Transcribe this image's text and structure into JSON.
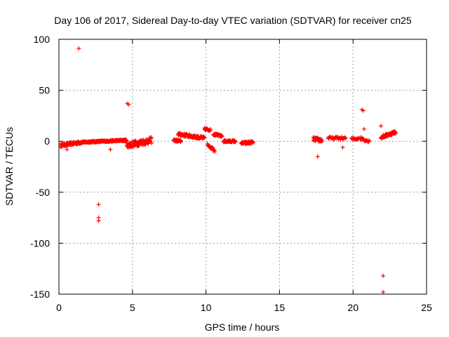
{
  "chart_data": {
    "type": "scatter",
    "title": "Day 106 of 2017, Sidereal Day-to-day VTEC variation (SDTVAR) for receiver cn25",
    "xlabel": "GPS time / hours",
    "ylabel": "SDTVAR / TECUs",
    "xlim": [
      0,
      25
    ],
    "ylim": [
      -150,
      100
    ],
    "xticks": [
      0,
      5,
      10,
      15,
      20,
      25
    ],
    "yticks": [
      -150,
      -100,
      -50,
      0,
      50,
      100
    ],
    "grid": true,
    "marker": "+",
    "color": "#ff0000",
    "series": [
      {
        "name": "SDTVAR",
        "segments": [
          {
            "x_start": 0.1,
            "x_end": 1.5,
            "y_start": -4,
            "y_end": -1,
            "step": 0.02,
            "jitter": 1.5
          },
          {
            "x_start": 1.5,
            "x_end": 4.6,
            "y_start": -1,
            "y_end": 1,
            "step": 0.02,
            "jitter": 0.8
          },
          {
            "x_start": 4.6,
            "x_end": 6.3,
            "y_start": -4,
            "y_end": 1,
            "step": 0.02,
            "jitter": 3
          },
          {
            "x_start": 7.8,
            "x_end": 8.3,
            "y_start": 1,
            "y_end": 0,
            "step": 0.02,
            "jitter": 1
          },
          {
            "x_start": 8.1,
            "x_end": 9.9,
            "y_start": 7,
            "y_end": 3,
            "step": 0.02,
            "jitter": 1.5
          },
          {
            "x_start": 9.9,
            "x_end": 10.3,
            "y_start": 12,
            "y_end": 11,
            "step": 0.02,
            "jitter": 1
          },
          {
            "x_start": 10.1,
            "x_end": 10.6,
            "y_start": -3,
            "y_end": -9,
            "step": 0.03,
            "jitter": 1.5
          },
          {
            "x_start": 10.5,
            "x_end": 11.1,
            "y_start": 7,
            "y_end": 5,
            "step": 0.02,
            "jitter": 1
          },
          {
            "x_start": 11.2,
            "x_end": 12.0,
            "y_start": 0,
            "y_end": 0,
            "step": 0.02,
            "jitter": 1
          },
          {
            "x_start": 12.4,
            "x_end": 13.2,
            "y_start": -2,
            "y_end": -1,
            "step": 0.02,
            "jitter": 1.2
          },
          {
            "x_start": 17.3,
            "x_end": 17.9,
            "y_start": 2,
            "y_end": 1,
            "step": 0.02,
            "jitter": 2
          },
          {
            "x_start": 18.3,
            "x_end": 19.5,
            "y_start": 3,
            "y_end": 3,
            "step": 0.05,
            "jitter": 1.5
          },
          {
            "x_start": 19.9,
            "x_end": 20.4,
            "y_start": 2,
            "y_end": 3,
            "step": 0.04,
            "jitter": 1.5
          },
          {
            "x_start": 20.5,
            "x_end": 21.1,
            "y_start": 3,
            "y_end": 0,
            "step": 0.04,
            "jitter": 1.5
          },
          {
            "x_start": 21.9,
            "x_end": 22.9,
            "y_start": 4,
            "y_end": 9,
            "step": 0.02,
            "jitter": 1.5
          }
        ],
        "points": [
          {
            "x": 1.35,
            "y": 91
          },
          {
            "x": 4.65,
            "y": 37
          },
          {
            "x": 4.75,
            "y": 36
          },
          {
            "x": 2.7,
            "y": -62
          },
          {
            "x": 2.7,
            "y": -75
          },
          {
            "x": 2.7,
            "y": -78
          },
          {
            "x": 3.5,
            "y": -8
          },
          {
            "x": 0.55,
            "y": -8
          },
          {
            "x": 17.6,
            "y": -15
          },
          {
            "x": 19.3,
            "y": -6
          },
          {
            "x": 20.6,
            "y": 31
          },
          {
            "x": 20.7,
            "y": 30
          },
          {
            "x": 20.75,
            "y": 12
          },
          {
            "x": 21.9,
            "y": 15
          },
          {
            "x": 22.05,
            "y": -132
          },
          {
            "x": 22.05,
            "y": -148
          }
        ]
      }
    ]
  }
}
